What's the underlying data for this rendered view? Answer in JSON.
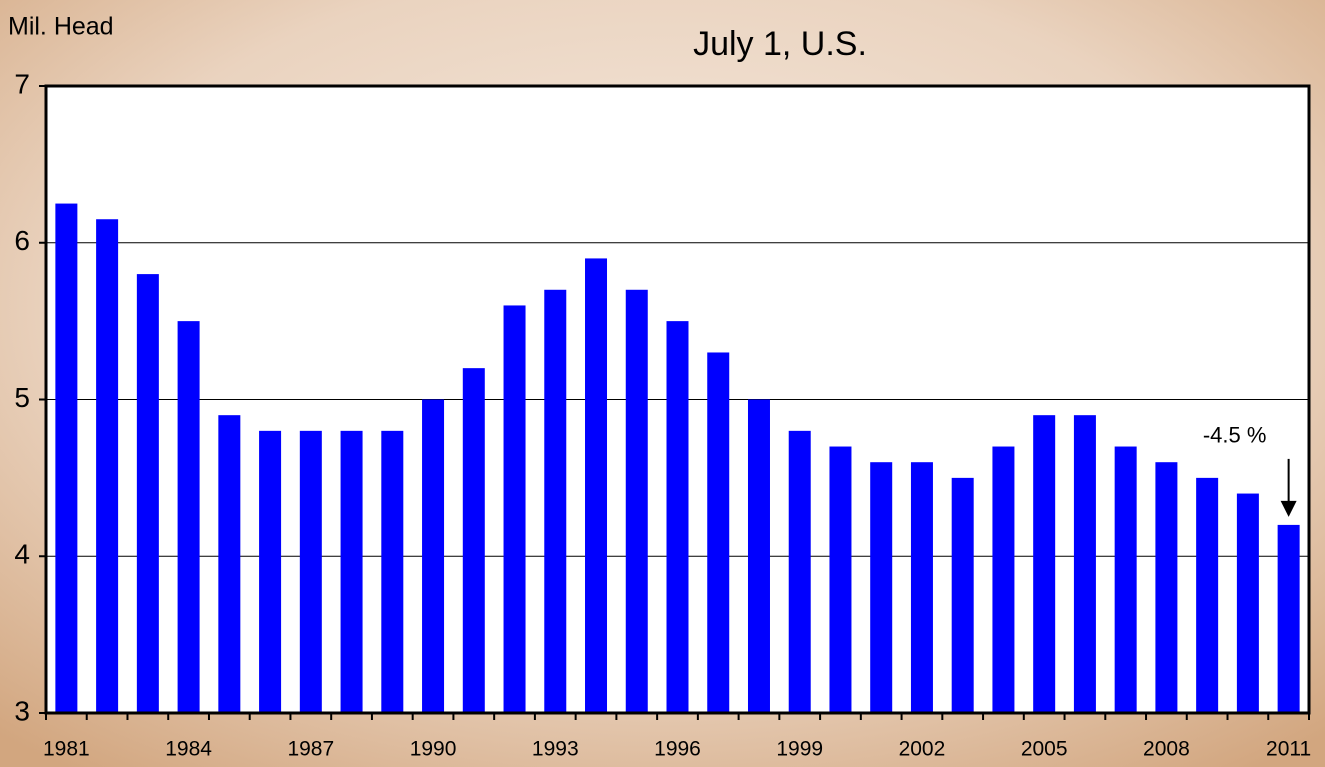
{
  "chart_data": {
    "type": "bar",
    "title": "July 1, U.S.",
    "y_label": "Mil. Head",
    "annotation": "-4.5 %",
    "categories": [
      "1981",
      null,
      null,
      "1984",
      null,
      null,
      "1987",
      null,
      null,
      "1990",
      null,
      null,
      "1993",
      null,
      null,
      "1996",
      null,
      null,
      "1999",
      null,
      null,
      "2002",
      null,
      null,
      "2005",
      null,
      null,
      "2008",
      null,
      null,
      "2011"
    ],
    "values": [
      6.25,
      6.15,
      5.8,
      5.5,
      4.9,
      4.8,
      4.8,
      4.8,
      4.8,
      5.0,
      5.2,
      5.6,
      5.7,
      5.9,
      5.7,
      5.5,
      5.3,
      5.0,
      4.8,
      4.7,
      4.6,
      4.6,
      4.5,
      4.7,
      4.9,
      4.9,
      4.7,
      4.6,
      4.5,
      4.4,
      4.2
    ],
    "color": "#0000ff",
    "ylim": [
      3,
      7
    ],
    "yticks": [
      3,
      4,
      5,
      6,
      7
    ],
    "grid": true
  }
}
